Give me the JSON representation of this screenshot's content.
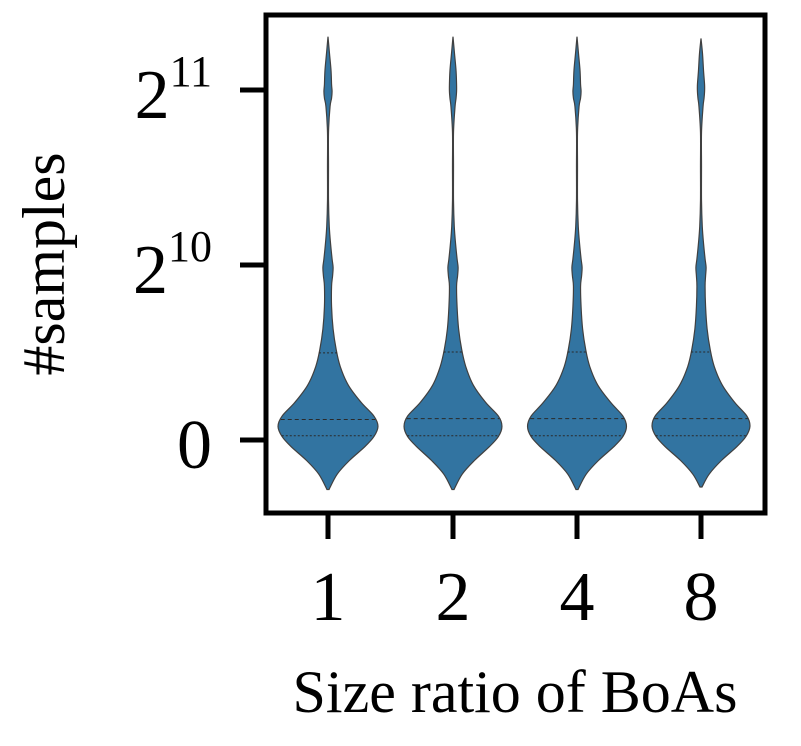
{
  "chart_data": {
    "type": "violin",
    "title": "",
    "xlabel": "Size ratio of BoAs",
    "ylabel": "#samples",
    "categories": [
      "1",
      "2",
      "4",
      "8"
    ],
    "y_ticks": [
      {
        "value": 0,
        "base": "0",
        "exp": ""
      },
      {
        "value": 1024,
        "base": "2",
        "exp": "10"
      },
      {
        "value": 2048,
        "base": "2",
        "exp": "11"
      }
    ],
    "ylim": [
      -420,
      2950
    ],
    "color": "#3274a1",
    "edge_color": "#404040",
    "grid": false,
    "legend": "none",
    "violins": [
      {
        "category": "1",
        "range": [
          -290,
          2360
        ],
        "quartiles": [
          25,
          120,
          510
        ],
        "density": [
          [
            -290,
            0.02
          ],
          [
            -200,
            0.18
          ],
          [
            -120,
            0.42
          ],
          [
            -40,
            0.72
          ],
          [
            20,
            0.9
          ],
          [
            80,
            0.98
          ],
          [
            140,
            0.9
          ],
          [
            220,
            0.65
          ],
          [
            320,
            0.4
          ],
          [
            430,
            0.24
          ],
          [
            530,
            0.16
          ],
          [
            650,
            0.1
          ],
          [
            780,
            0.07
          ],
          [
            900,
            0.07
          ],
          [
            960,
            0.09
          ],
          [
            1010,
            0.1
          ],
          [
            1060,
            0.08
          ],
          [
            1150,
            0.05
          ],
          [
            1250,
            0.025
          ],
          [
            1400,
            0.01
          ],
          [
            1600,
            0.01
          ],
          [
            1800,
            0.01
          ],
          [
            1950,
            0.04
          ],
          [
            2000,
            0.07
          ],
          [
            2040,
            0.08
          ],
          [
            2080,
            0.07
          ],
          [
            2160,
            0.06
          ],
          [
            2260,
            0.03
          ],
          [
            2360,
            0.0
          ]
        ]
      },
      {
        "category": "2",
        "range": [
          -290,
          2360
        ],
        "quartiles": [
          25,
          125,
          515
        ],
        "density": [
          [
            -290,
            0.02
          ],
          [
            -200,
            0.18
          ],
          [
            -120,
            0.42
          ],
          [
            -40,
            0.71
          ],
          [
            20,
            0.89
          ],
          [
            80,
            0.96
          ],
          [
            140,
            0.89
          ],
          [
            220,
            0.64
          ],
          [
            320,
            0.4
          ],
          [
            430,
            0.25
          ],
          [
            530,
            0.17
          ],
          [
            650,
            0.11
          ],
          [
            780,
            0.08
          ],
          [
            900,
            0.07
          ],
          [
            960,
            0.09
          ],
          [
            1010,
            0.1
          ],
          [
            1060,
            0.08
          ],
          [
            1150,
            0.05
          ],
          [
            1250,
            0.025
          ],
          [
            1400,
            0.01
          ],
          [
            1600,
            0.01
          ],
          [
            1800,
            0.01
          ],
          [
            1950,
            0.04
          ],
          [
            2000,
            0.06
          ],
          [
            2040,
            0.07
          ],
          [
            2080,
            0.07
          ],
          [
            2160,
            0.06
          ],
          [
            2260,
            0.03
          ],
          [
            2360,
            0.0
          ]
        ]
      },
      {
        "category": "4",
        "range": [
          -290,
          2360
        ],
        "quartiles": [
          25,
          125,
          515
        ],
        "density": [
          [
            -290,
            0.02
          ],
          [
            -200,
            0.18
          ],
          [
            -120,
            0.42
          ],
          [
            -40,
            0.72
          ],
          [
            20,
            0.9
          ],
          [
            80,
            0.97
          ],
          [
            140,
            0.9
          ],
          [
            220,
            0.66
          ],
          [
            320,
            0.41
          ],
          [
            430,
            0.25
          ],
          [
            530,
            0.17
          ],
          [
            650,
            0.11
          ],
          [
            780,
            0.08
          ],
          [
            900,
            0.07
          ],
          [
            960,
            0.09
          ],
          [
            1010,
            0.1
          ],
          [
            1060,
            0.08
          ],
          [
            1150,
            0.05
          ],
          [
            1250,
            0.025
          ],
          [
            1400,
            0.01
          ],
          [
            1600,
            0.01
          ],
          [
            1800,
            0.01
          ],
          [
            1950,
            0.04
          ],
          [
            2000,
            0.07
          ],
          [
            2040,
            0.08
          ],
          [
            2080,
            0.07
          ],
          [
            2160,
            0.06
          ],
          [
            2260,
            0.03
          ],
          [
            2360,
            0.0
          ]
        ]
      },
      {
        "category": "8",
        "range": [
          -275,
          2350
        ],
        "quartiles": [
          25,
          125,
          515
        ],
        "density": [
          [
            -275,
            0.02
          ],
          [
            -200,
            0.16
          ],
          [
            -120,
            0.4
          ],
          [
            -40,
            0.7
          ],
          [
            20,
            0.88
          ],
          [
            80,
            0.96
          ],
          [
            140,
            0.9
          ],
          [
            220,
            0.66
          ],
          [
            320,
            0.42
          ],
          [
            430,
            0.26
          ],
          [
            530,
            0.18
          ],
          [
            650,
            0.12
          ],
          [
            780,
            0.09
          ],
          [
            900,
            0.08
          ],
          [
            960,
            0.09
          ],
          [
            1010,
            0.1
          ],
          [
            1060,
            0.08
          ],
          [
            1150,
            0.05
          ],
          [
            1250,
            0.025
          ],
          [
            1400,
            0.01
          ],
          [
            1600,
            0.01
          ],
          [
            1800,
            0.01
          ],
          [
            1950,
            0.04
          ],
          [
            2000,
            0.06
          ],
          [
            2040,
            0.07
          ],
          [
            2080,
            0.07
          ],
          [
            2160,
            0.05
          ],
          [
            2260,
            0.03
          ],
          [
            2350,
            0.0
          ]
        ]
      }
    ]
  }
}
